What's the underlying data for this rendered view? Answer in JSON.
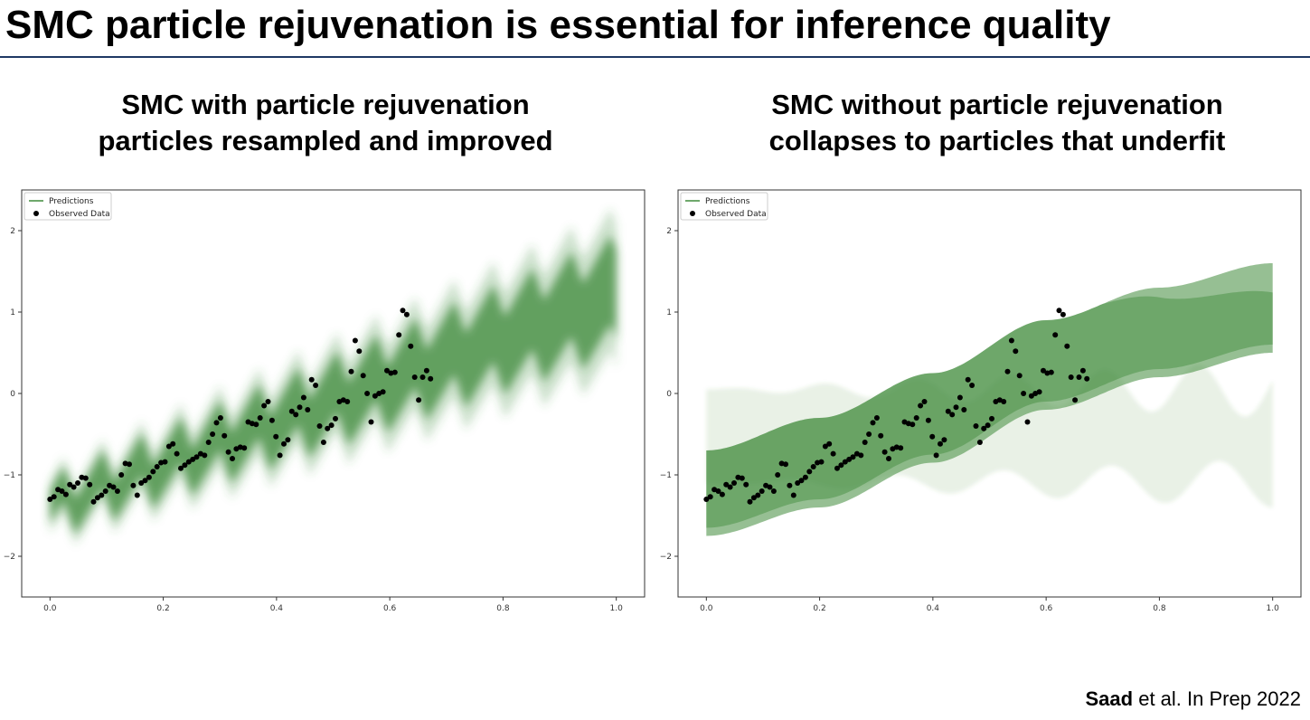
{
  "slide": {
    "title": "SMC particle rejuvenation is essential for inference quality",
    "citation_author": "Saad",
    "citation_rest": " et al. In Prep 2022"
  },
  "chart_data": [
    {
      "type": "line",
      "heading_line1": "SMC with particle rejuvenation",
      "heading_line2": "particles resampled and improved",
      "xlim": [
        -0.05,
        1.05
      ],
      "ylim": [
        -2.5,
        2.5
      ],
      "xticks": [
        "0.0",
        "0.2",
        "0.4",
        "0.6",
        "0.8",
        "1.0"
      ],
      "yticks": [
        "2",
        "1",
        "0",
        "−1",
        "−2"
      ],
      "legend": [
        "Predictions",
        "Observed Data"
      ],
      "legend_position": "top-left",
      "color_predictions": "#3f8a3a",
      "color_observed": "#000000",
      "predictions": {
        "center_curve": "-1.4 + 2.6*x + 0.23*sawtooth(14.5*x)",
        "band_halfwidth_start": 0.2,
        "band_halfwidth_end": 0.55
      },
      "observed": [
        [
          0.0,
          -1.3
        ],
        [
          0.007,
          -1.27
        ],
        [
          0.014,
          -1.18
        ],
        [
          0.021,
          -1.2
        ],
        [
          0.028,
          -1.24
        ],
        [
          0.035,
          -1.12
        ],
        [
          0.042,
          -1.15
        ],
        [
          0.049,
          -1.1
        ],
        [
          0.056,
          -1.03
        ],
        [
          0.063,
          -1.04
        ],
        [
          0.07,
          -1.12
        ],
        [
          0.077,
          -1.33
        ],
        [
          0.084,
          -1.28
        ],
        [
          0.091,
          -1.25
        ],
        [
          0.098,
          -1.2
        ],
        [
          0.105,
          -1.13
        ],
        [
          0.112,
          -1.15
        ],
        [
          0.119,
          -1.2
        ],
        [
          0.126,
          -1.0
        ],
        [
          0.133,
          -0.86
        ],
        [
          0.14,
          -0.87
        ],
        [
          0.147,
          -1.13
        ],
        [
          0.154,
          -1.25
        ],
        [
          0.161,
          -1.1
        ],
        [
          0.168,
          -1.07
        ],
        [
          0.175,
          -1.03
        ],
        [
          0.182,
          -0.96
        ],
        [
          0.189,
          -0.9
        ],
        [
          0.196,
          -0.85
        ],
        [
          0.203,
          -0.84
        ],
        [
          0.21,
          -0.65
        ],
        [
          0.217,
          -0.62
        ],
        [
          0.224,
          -0.74
        ],
        [
          0.231,
          -0.92
        ],
        [
          0.238,
          -0.88
        ],
        [
          0.245,
          -0.84
        ],
        [
          0.252,
          -0.81
        ],
        [
          0.259,
          -0.78
        ],
        [
          0.266,
          -0.74
        ],
        [
          0.273,
          -0.76
        ],
        [
          0.28,
          -0.6
        ],
        [
          0.287,
          -0.5
        ],
        [
          0.294,
          -0.36
        ],
        [
          0.301,
          -0.3
        ],
        [
          0.308,
          -0.52
        ],
        [
          0.315,
          -0.72
        ],
        [
          0.322,
          -0.8
        ],
        [
          0.329,
          -0.68
        ],
        [
          0.336,
          -0.66
        ],
        [
          0.343,
          -0.67
        ],
        [
          0.35,
          -0.35
        ],
        [
          0.357,
          -0.37
        ],
        [
          0.364,
          -0.38
        ],
        [
          0.371,
          -0.3
        ],
        [
          0.378,
          -0.15
        ],
        [
          0.385,
          -0.1
        ],
        [
          0.392,
          -0.33
        ],
        [
          0.399,
          -0.53
        ],
        [
          0.406,
          -0.76
        ],
        [
          0.413,
          -0.62
        ],
        [
          0.42,
          -0.57
        ],
        [
          0.427,
          -0.22
        ],
        [
          0.434,
          -0.26
        ],
        [
          0.441,
          -0.17
        ],
        [
          0.448,
          -0.05
        ],
        [
          0.455,
          -0.2
        ],
        [
          0.462,
          0.17
        ],
        [
          0.469,
          0.1
        ],
        [
          0.476,
          -0.4
        ],
        [
          0.483,
          -0.6
        ],
        [
          0.49,
          -0.43
        ],
        [
          0.497,
          -0.39
        ],
        [
          0.504,
          -0.31
        ],
        [
          0.511,
          -0.1
        ],
        [
          0.518,
          -0.08
        ],
        [
          0.525,
          -0.1
        ],
        [
          0.532,
          0.27
        ],
        [
          0.539,
          0.65
        ],
        [
          0.546,
          0.52
        ],
        [
          0.553,
          0.22
        ],
        [
          0.56,
          0.0
        ],
        [
          0.567,
          -0.35
        ],
        [
          0.574,
          -0.03
        ],
        [
          0.581,
          0.0
        ],
        [
          0.588,
          0.02
        ],
        [
          0.595,
          0.28
        ],
        [
          0.602,
          0.25
        ],
        [
          0.609,
          0.26
        ],
        [
          0.616,
          0.72
        ],
        [
          0.623,
          1.02
        ],
        [
          0.63,
          0.97
        ],
        [
          0.637,
          0.58
        ],
        [
          0.644,
          0.2
        ],
        [
          0.651,
          -0.08
        ],
        [
          0.658,
          0.2
        ],
        [
          0.665,
          0.28
        ],
        [
          0.672,
          0.18
        ]
      ]
    },
    {
      "type": "line",
      "heading_line1": "SMC without particle rejuvenation",
      "heading_line2": "collapses to particles that underfit",
      "xlim": [
        -0.05,
        1.05
      ],
      "ylim": [
        -2.5,
        2.5
      ],
      "xticks": [
        "0.0",
        "0.2",
        "0.4",
        "0.6",
        "0.8",
        "1.0"
      ],
      "yticks": [
        "2",
        "1",
        "0",
        "−1",
        "−2"
      ],
      "legend": [
        "Predictions",
        "Observed Data"
      ],
      "legend_position": "top-left",
      "color_predictions": "#3f8a3a",
      "color_observed": "#000000",
      "predictions": {
        "main_band_lower": [
          [
            0.0,
            -1.75
          ],
          [
            0.2,
            -1.4
          ],
          [
            0.4,
            -0.85
          ],
          [
            0.6,
            -0.2
          ],
          [
            0.8,
            0.2
          ],
          [
            1.0,
            0.5
          ]
        ],
        "main_band_upper": [
          [
            0.0,
            -0.7
          ],
          [
            0.2,
            -0.3
          ],
          [
            0.4,
            0.25
          ],
          [
            0.6,
            0.9
          ],
          [
            0.8,
            1.3
          ],
          [
            1.0,
            1.6
          ]
        ],
        "faint_band_lower": [
          [
            0.0,
            -0.6
          ],
          [
            0.4,
            -1.1
          ],
          [
            0.6,
            -1.2
          ],
          [
            1.0,
            -1.0
          ]
        ],
        "faint_band_upper": [
          [
            0.0,
            0.0
          ],
          [
            0.4,
            0.1
          ],
          [
            0.6,
            0.3
          ],
          [
            1.0,
            0.1
          ]
        ]
      },
      "observed": "same as left panel"
    }
  ]
}
